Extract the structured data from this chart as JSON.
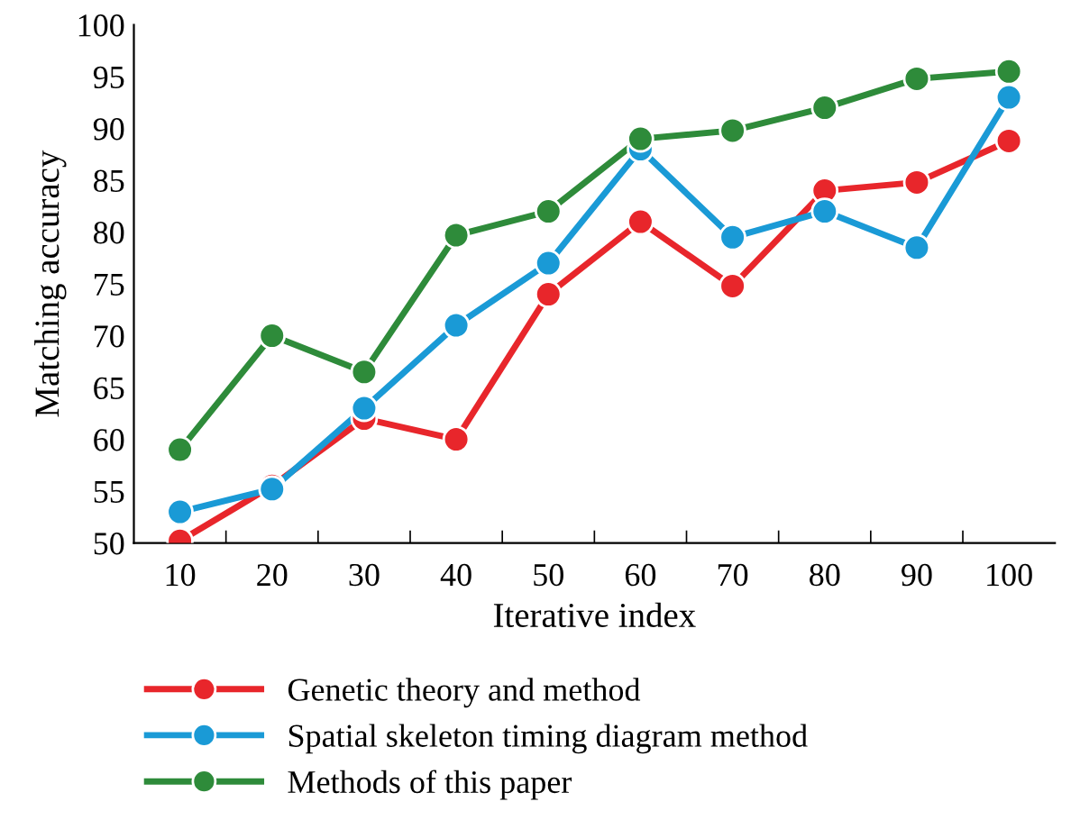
{
  "chart_data": {
    "type": "line",
    "xlabel": "Iterative index",
    "ylabel": "Matching accuracy",
    "categories": [
      "10",
      "20",
      "30",
      "40",
      "50",
      "60",
      "70",
      "80",
      "90",
      "100"
    ],
    "ylim": [
      50,
      100
    ],
    "yticks": [
      50,
      55,
      60,
      65,
      70,
      75,
      80,
      85,
      90,
      95,
      100
    ],
    "series": [
      {
        "name": "Genetic theory and method",
        "color": "#e8262b",
        "values": [
          50.2,
          55.5,
          62,
          60,
          74,
          81,
          74.8,
          84,
          84.8,
          88.8
        ]
      },
      {
        "name": "Spatial skeleton timing diagram method",
        "color": "#1a9ad6",
        "values": [
          53,
          55.2,
          63,
          71,
          77,
          88,
          79.5,
          82,
          78.5,
          93
        ]
      },
      {
        "name": "Methods of this paper",
        "color": "#2e8b3a",
        "values": [
          59,
          70,
          66.5,
          79.7,
          82,
          89,
          89.8,
          92,
          94.8,
          95.5
        ]
      }
    ],
    "marker": "circle",
    "line_style": "solid",
    "grid": false,
    "legend": "bottom"
  }
}
